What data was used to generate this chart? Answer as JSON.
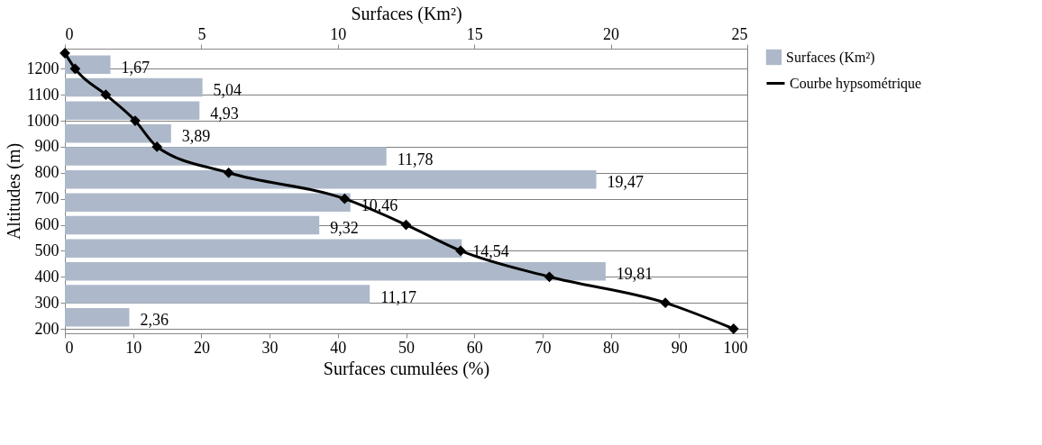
{
  "chart_data": {
    "type": "bar",
    "orientation": "horizontal",
    "xlabel": "Surfaces cumulées (%)",
    "x2label": "Surfaces (Km²)",
    "ylabel": "Altitudes (m)",
    "series": [
      {
        "name": "Surfaces (Km²)",
        "axis": "x2",
        "color": "#adb9ca",
        "x": [
          1216,
          1128,
          1039,
          951,
          863,
          774,
          686,
          598,
          509,
          421,
          333,
          244
        ],
        "values": [
          1.67,
          5.04,
          4.93,
          3.89,
          11.78,
          19.47,
          10.46,
          9.32,
          14.54,
          19.81,
          11.17,
          2.36
        ],
        "value_labels": [
          "1,67",
          "5,04",
          "4,93",
          "3,89",
          "11,78",
          "19,47",
          "10,46",
          "9,32",
          "14,54",
          "19,81",
          "11,17",
          "2,36"
        ]
      },
      {
        "name": "Courbe hypsométrique",
        "type": "line",
        "color": "#000000",
        "marker": "diamond",
        "x": [
          1260,
          1200,
          1100,
          1000,
          900,
          800,
          700,
          600,
          500,
          400,
          300,
          200
        ],
        "values": [
          0,
          1.5,
          6,
          10.3,
          13.5,
          24,
          41,
          50,
          58,
          71,
          88,
          98
        ]
      }
    ],
    "xlim": [
      0,
      100
    ],
    "xticks": [
      0,
      10,
      20,
      30,
      40,
      50,
      60,
      70,
      80,
      90,
      100
    ],
    "x2lim": [
      0,
      25
    ],
    "x2ticks": [
      0,
      5,
      10,
      15,
      20,
      25
    ],
    "ylim": [
      200,
      1260
    ],
    "yticks": [
      200,
      300,
      400,
      500,
      600,
      700,
      800,
      900,
      1000,
      1100,
      1200
    ],
    "grid": "y",
    "legend": "right"
  }
}
